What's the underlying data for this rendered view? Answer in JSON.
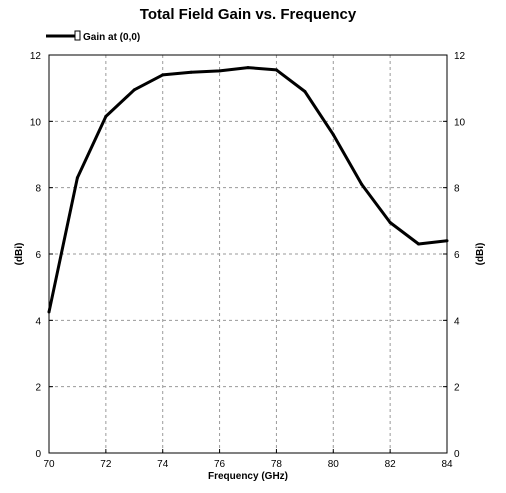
{
  "chart_data": {
    "type": "line",
    "title": "Total Field Gain vs. Frequency",
    "xlabel": "Frequency (GHz)",
    "ylabel": "(dBi)",
    "ylabel_right": "(dBi)",
    "xlim": [
      70,
      84
    ],
    "ylim": [
      0,
      12
    ],
    "x_ticks": [
      "70",
      "72",
      "74",
      "76",
      "78",
      "80",
      "82",
      "84"
    ],
    "y_ticks": [
      "0",
      "2",
      "4",
      "6",
      "8",
      "10",
      "12"
    ],
    "grid": true,
    "legend_position": "top-left",
    "series": [
      {
        "name": "Gain at (0,0)",
        "color": "#000000",
        "x": [
          70,
          71,
          72,
          73,
          74,
          75,
          76,
          77,
          78,
          79,
          80,
          81,
          82,
          83,
          84
        ],
        "values": [
          4.25,
          8.3,
          10.15,
          10.95,
          11.4,
          11.48,
          11.52,
          11.62,
          11.55,
          10.9,
          9.6,
          8.1,
          6.95,
          6.3,
          6.4
        ]
      }
    ]
  }
}
